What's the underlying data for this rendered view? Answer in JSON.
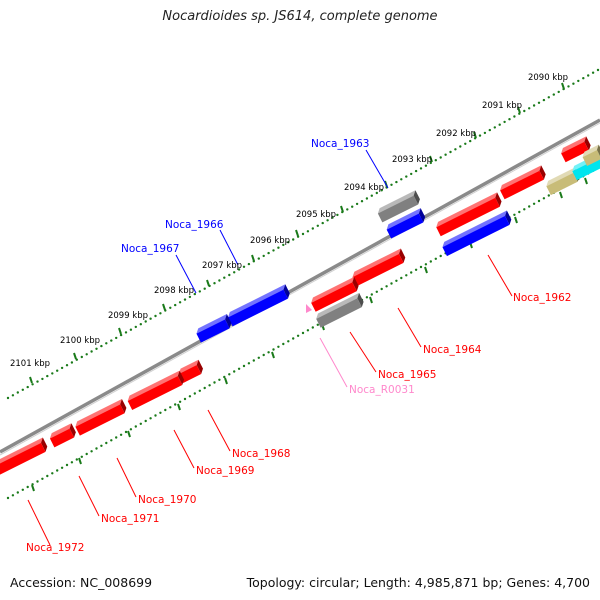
{
  "title": "Nocardioides sp. JS614, complete genome",
  "footer": {
    "accession": "Accession: NC_008699",
    "summary": "Topology: circular; Length: 4,985,871 bp; Genes: 4,700"
  },
  "colors": {
    "forward_gene": "#ff0000",
    "reverse_gene": "#0000ff",
    "pseudo_gene": "#808080",
    "rna_gene": "#ff88cc",
    "other_olive": "#c8bc78",
    "other_cyan": "#00e5ee",
    "backbone": "#8a8a8a",
    "scale": "#1a7a1a"
  },
  "upper_scale": [
    "2090 kbp",
    "2091 kbp",
    "2092 kbp",
    "2093 kbp",
    "2094 kbp",
    "2095 kbp",
    "2096 kbp",
    "2097 kbp",
    "2098 kbp",
    "2099 kbp",
    "2100 kbp",
    "2101 kbp"
  ],
  "gene_labels": [
    {
      "id": "Noca_1963",
      "strand": "reverse"
    },
    {
      "id": "Noca_1966",
      "strand": "reverse"
    },
    {
      "id": "Noca_1967",
      "strand": "reverse"
    },
    {
      "id": "Noca_1962",
      "strand": "forward"
    },
    {
      "id": "Noca_1964",
      "strand": "forward"
    },
    {
      "id": "Noca_1965",
      "strand": "forward"
    },
    {
      "id": "Noca_R0031",
      "strand": "rna"
    },
    {
      "id": "Noca_1968",
      "strand": "forward"
    },
    {
      "id": "Noca_1969",
      "strand": "forward"
    },
    {
      "id": "Noca_1970",
      "strand": "forward"
    },
    {
      "id": "Noca_1971",
      "strand": "forward"
    },
    {
      "id": "Noca_1972",
      "strand": "forward"
    }
  ]
}
